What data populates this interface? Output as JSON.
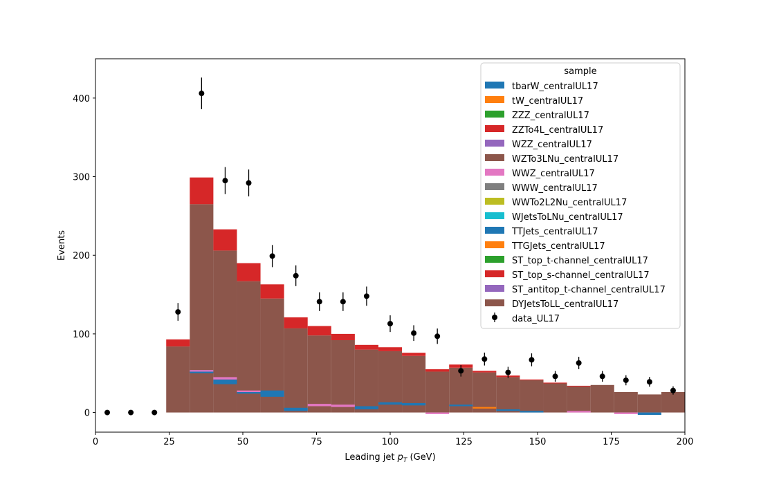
{
  "chart_data": {
    "type": "bar",
    "stacked": true,
    "xlabel_main": "Leading jet ",
    "xlabel_math": "p",
    "xlabel_sub": "T",
    "xlabel_unit": " (GeV)",
    "ylabel": "Events",
    "xlim": [
      0,
      200
    ],
    "ylim": [
      -25,
      450
    ],
    "xticks": [
      0,
      25,
      50,
      75,
      100,
      125,
      150,
      175,
      200
    ],
    "yticks": [
      0,
      100,
      200,
      300,
      400
    ],
    "grid": false,
    "legend_placement": "top-right",
    "legend_title": "sample",
    "bin_edges": [
      24,
      32,
      40,
      48,
      56,
      64,
      72,
      80,
      88,
      96,
      104,
      112,
      120,
      128,
      136,
      144,
      152,
      160,
      168,
      176,
      184,
      192,
      200
    ],
    "series": [
      {
        "name": "tbarW_centralUL17",
        "color": "#1f77b4",
        "values": [
          0,
          0,
          0,
          0,
          0,
          0,
          0,
          0,
          0,
          0,
          0,
          0,
          0,
          0,
          0,
          0,
          0,
          0,
          0,
          0,
          0,
          0
        ]
      },
      {
        "name": "tW_centralUL17",
        "color": "#ff7f0e",
        "values": [
          0,
          0,
          0,
          0,
          0,
          0,
          0,
          0,
          0,
          0,
          0,
          0,
          0,
          0,
          0,
          0,
          0,
          0,
          0,
          0,
          0,
          0
        ]
      },
      {
        "name": "ZZZ_centralUL17",
        "color": "#2ca02c",
        "values": [
          0,
          0,
          0,
          0,
          0,
          0,
          0,
          0,
          0,
          0,
          0,
          0,
          0,
          0,
          0,
          0,
          0,
          0,
          0,
          0,
          0,
          0
        ]
      },
      {
        "name": "ZZTo4L_centralUL17",
        "color": "#d62728",
        "values": [
          0,
          0,
          0,
          0,
          0,
          0,
          0,
          0,
          0,
          0,
          0,
          0,
          0,
          0,
          0,
          0,
          0,
          0,
          0,
          0,
          0,
          0
        ]
      },
      {
        "name": "WZZ_centralUL17",
        "color": "#9467bd",
        "values": [
          0,
          0,
          0,
          0,
          0,
          0,
          0,
          0,
          0,
          0,
          0,
          0,
          0,
          0,
          0,
          0,
          0,
          0,
          0,
          0,
          0,
          0
        ]
      },
      {
        "name": "WZTo3LNu_centralUL17",
        "color": "#8c564b",
        "values": [
          0,
          0,
          0,
          0,
          0,
          0,
          0,
          0,
          0,
          0,
          0,
          0,
          0,
          0,
          0,
          0,
          0,
          0,
          0,
          0,
          0,
          0
        ]
      },
      {
        "name": "WWZ_centralUL17",
        "color": "#e377c2",
        "values": [
          0,
          0,
          0,
          0,
          0,
          0,
          0,
          0,
          0,
          0,
          0,
          0,
          0,
          0,
          0,
          0,
          0,
          0,
          0,
          0,
          0,
          0
        ]
      },
      {
        "name": "WWW_centralUL17",
        "color": "#7f7f7f",
        "values": [
          0,
          0,
          0,
          0,
          0,
          0,
          0,
          0,
          0,
          0,
          0,
          0,
          0,
          0,
          0,
          0,
          0,
          0,
          0,
          0,
          0,
          0
        ]
      },
      {
        "name": "WWTo2L2Nu_centralUL17",
        "color": "#bcbd22",
        "values": [
          0,
          0,
          0,
          0,
          0,
          0,
          0,
          0,
          0,
          0,
          0,
          0,
          0,
          0,
          0,
          0,
          0,
          0,
          0,
          0,
          0,
          0
        ]
      },
      {
        "name": "WJetsToLNu_centralUL17",
        "color": "#17becf",
        "values": [
          0,
          0,
          0,
          0,
          0,
          0,
          0,
          0,
          0,
          0,
          0,
          0,
          0,
          0,
          0,
          0,
          0,
          0,
          0,
          0,
          0,
          0
        ]
      },
      {
        "name": "TTJets_centralUL17",
        "color": "#1f77b4",
        "values": [
          0,
          0,
          0,
          0,
          0,
          0,
          0,
          0,
          0,
          0,
          0,
          0,
          0,
          0,
          0,
          0,
          0,
          0,
          0,
          0,
          0,
          0
        ]
      },
      {
        "name": "TTGJets_centralUL17",
        "color": "#ff7f0e",
        "values": [
          0,
          0,
          0,
          0,
          0,
          0,
          0,
          0,
          0,
          0,
          0,
          0,
          0,
          0,
          0,
          0,
          0,
          0,
          0,
          0,
          0,
          0
        ]
      },
      {
        "name": "ST_top_t-channel_centralUL17",
        "color": "#2ca02c",
        "values": [
          0,
          0,
          0,
          0,
          0,
          0,
          0,
          0,
          0,
          0,
          0,
          0,
          0,
          0,
          0,
          0,
          0,
          0,
          0,
          0,
          0,
          0
        ]
      },
      {
        "name": "ST_top_s-channel_centralUL17",
        "color": "#d62728",
        "values": [
          9,
          34,
          27,
          23,
          18,
          14,
          12,
          8,
          6,
          5,
          4,
          3,
          4,
          2,
          2,
          1,
          1,
          1,
          0,
          0,
          0,
          0
        ]
      },
      {
        "name": "ST_antitop_t-channel_centralUL17",
        "color": "#9467bd",
        "values": [
          0,
          0,
          0,
          0,
          0,
          0,
          0,
          0,
          0,
          0,
          0,
          0,
          0,
          0,
          0,
          0,
          0,
          0,
          0,
          0,
          0,
          0
        ]
      },
      {
        "name": "DYJetsToLL_centralUL17",
        "color": "#8c564b",
        "values": [
          84,
          265,
          206,
          167,
          145,
          107,
          98,
          92,
          80,
          78,
          72,
          52,
          57,
          51,
          45,
          41,
          37,
          33,
          35,
          26,
          23,
          26
        ]
      }
    ],
    "low_bands": [
      {
        "x0": 32,
        "x1": 40,
        "y0": 50,
        "y1": 54,
        "color": "#1f77b4"
      },
      {
        "x0": 32,
        "x1": 40,
        "y0": 52,
        "y1": 54,
        "color": "#e377c2"
      },
      {
        "x0": 40,
        "x1": 48,
        "y0": 36,
        "y1": 42,
        "color": "#1f77b4"
      },
      {
        "x0": 40,
        "x1": 48,
        "y0": 42,
        "y1": 45,
        "color": "#e377c2"
      },
      {
        "x0": 48,
        "x1": 56,
        "y0": 24,
        "y1": 27,
        "color": "#1f77b4"
      },
      {
        "x0": 48,
        "x1": 56,
        "y0": 26,
        "y1": 28,
        "color": "#e377c2"
      },
      {
        "x0": 56,
        "x1": 64,
        "y0": 20,
        "y1": 28,
        "color": "#1f77b4"
      },
      {
        "x0": 64,
        "x1": 72,
        "y0": 2,
        "y1": 6,
        "color": "#1f77b4"
      },
      {
        "x0": 72,
        "x1": 80,
        "y0": 8,
        "y1": 11,
        "color": "#e377c2"
      },
      {
        "x0": 80,
        "x1": 88,
        "y0": 7,
        "y1": 10,
        "color": "#e377c2"
      },
      {
        "x0": 88,
        "x1": 96,
        "y0": 4,
        "y1": 8,
        "color": "#1f77b4"
      },
      {
        "x0": 96,
        "x1": 104,
        "y0": 10,
        "y1": 13,
        "color": "#1f77b4"
      },
      {
        "x0": 104,
        "x1": 112,
        "y0": 9,
        "y1": 12,
        "color": "#1f77b4"
      },
      {
        "x0": 120,
        "x1": 128,
        "y0": 8,
        "y1": 10,
        "color": "#1f77b4"
      },
      {
        "x0": 128,
        "x1": 136,
        "y0": 5,
        "y1": 7,
        "color": "#ff7f0e"
      },
      {
        "x0": 136,
        "x1": 144,
        "y0": 2,
        "y1": 4,
        "color": "#1f77b4"
      },
      {
        "x0": 144,
        "x1": 152,
        "y0": 0,
        "y1": 2,
        "color": "#1f77b4"
      },
      {
        "x0": 160,
        "x1": 168,
        "y0": 0,
        "y1": 2,
        "color": "#e377c2"
      },
      {
        "x0": 176,
        "x1": 184,
        "y0": -2,
        "y1": 0,
        "color": "#e377c2"
      },
      {
        "x0": 184,
        "x1": 192,
        "y0": -3,
        "y1": 0,
        "color": "#1f77b4"
      },
      {
        "x0": 112,
        "x1": 120,
        "y0": -2,
        "y1": 0,
        "color": "#e377c2"
      }
    ],
    "data_points": {
      "name": "data_UL17",
      "color": "#000000",
      "x": [
        4,
        12,
        20,
        28,
        36,
        44,
        52,
        60,
        68,
        76,
        84,
        92,
        100,
        108,
        116,
        124,
        132,
        140,
        148,
        156,
        164,
        172,
        180,
        188,
        196
      ],
      "y": [
        0,
        0,
        0,
        128,
        406,
        295,
        292,
        199,
        174,
        141,
        141,
        148,
        113,
        101,
        97,
        53,
        68,
        51,
        67,
        46,
        63,
        46,
        41,
        39,
        28
      ],
      "yerr": [
        0,
        0,
        0,
        11.3,
        20.1,
        17.2,
        17.1,
        14.1,
        13.2,
        11.9,
        11.9,
        12.2,
        10.6,
        10.0,
        9.8,
        7.3,
        8.2,
        7.1,
        8.2,
        6.8,
        7.9,
        6.8,
        6.4,
        6.2,
        5.3
      ]
    }
  }
}
